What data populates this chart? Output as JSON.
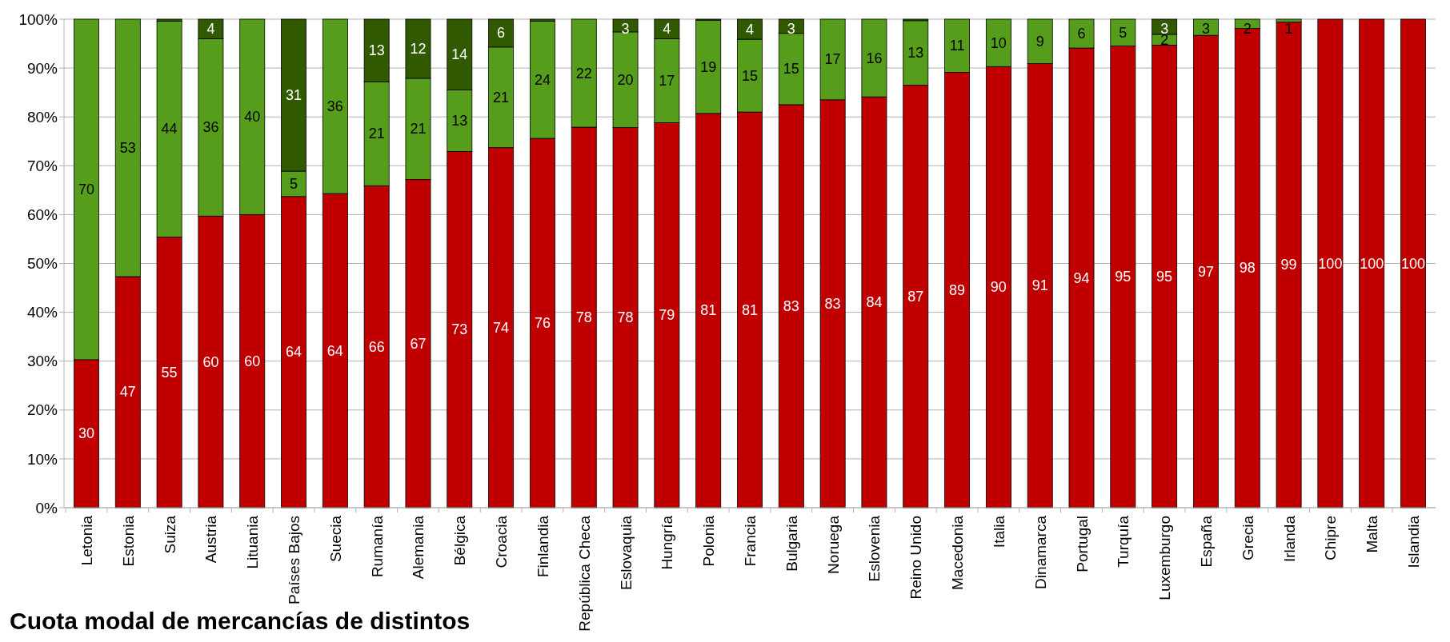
{
  "chart_data": {
    "type": "bar",
    "stacked": true,
    "title": "Cuota modal de mercancías de distintos",
    "categories": [
      "Letonia",
      "Estonia",
      "Suiza",
      "Austria",
      "Lituania",
      "Países Bajos",
      "Suecia",
      "Rumanía",
      "Alemania",
      "Bélgica",
      "Croacia",
      "Finlandia",
      "República Checa",
      "Eslovaquia",
      "Hungría",
      "Polonia",
      "Francia",
      "Bulgaria",
      "Noruega",
      "Eslovenia",
      "Reino Unido",
      "Macedonia",
      "Italia",
      "Dinamarca",
      "Portugal",
      "Turquía",
      "Luxemburgo",
      "España",
      "Grecia",
      "Irlanda",
      "Chipre",
      "Malta",
      "Islandia"
    ],
    "series": [
      {
        "color": "#c00000",
        "values": [
          30.3,
          47.3,
          55.4,
          59.7,
          60,
          63.7,
          64.3,
          65.9,
          67.2,
          72.9,
          73.7,
          75.6,
          77.9,
          77.8,
          78.8,
          80.7,
          81,
          82.5,
          83.5,
          84.1,
          86.5,
          89.1,
          90.3,
          90.9,
          94.1,
          94.5,
          94.7,
          96.7,
          98.1,
          99.4,
          100,
          100,
          100
        ],
        "value_labels": [
          "30",
          "47",
          "55",
          "60",
          "60",
          "64",
          "64",
          "66",
          "67",
          "73",
          "74",
          "76",
          "78",
          "78",
          "79",
          "81",
          "81",
          "83",
          "83",
          "84",
          "87",
          "89",
          "90",
          "91",
          "94",
          "95",
          "95",
          "97",
          "98",
          "99",
          "100",
          "100",
          "100"
        ]
      },
      {
        "color": "#579d1c",
        "values": [
          69.7,
          52.7,
          44.2,
          36.3,
          40,
          5.2,
          35.7,
          21.3,
          20.7,
          12.6,
          20.6,
          24,
          22.1,
          19.6,
          17.2,
          19.1,
          14.9,
          14.6,
          16.5,
          15.9,
          13.2,
          10.9,
          9.7,
          9.1,
          5.9,
          5.5,
          2.2,
          3.3,
          1.9,
          0.6,
          0,
          0,
          0
        ],
        "value_labels": [
          "70",
          "53",
          "44",
          "36",
          "40",
          "5",
          "36",
          "21",
          "21",
          "13",
          "21",
          "24",
          "22",
          "20",
          "17",
          "19",
          "15",
          "15",
          "17",
          "16",
          "13",
          "11",
          "10",
          "9",
          "6",
          "5",
          "2",
          "3",
          "2",
          "1",
          null,
          null,
          null
        ]
      },
      {
        "color": "#315a00",
        "values": [
          0,
          0,
          0.4,
          4,
          0,
          31.1,
          0,
          12.8,
          12.1,
          14.5,
          5.7,
          0.4,
          0,
          2.6,
          4,
          0.2,
          4.1,
          2.9,
          0,
          0,
          0.3,
          0,
          0,
          0,
          0,
          0,
          3.1,
          0,
          0,
          0,
          0,
          0,
          0
        ],
        "value_labels": [
          null,
          null,
          null,
          "4",
          null,
          "31",
          null,
          "13",
          "12",
          "14",
          "6",
          null,
          null,
          "3",
          "4",
          null,
          "4",
          "3",
          null,
          null,
          null,
          null,
          null,
          null,
          null,
          null,
          "3",
          null,
          null,
          null,
          null,
          null,
          null
        ]
      }
    ],
    "ylim": [
      0,
      100
    ],
    "yticks": [
      {
        "value": 0,
        "label": "0%"
      },
      {
        "value": 10,
        "label": "10%"
      },
      {
        "value": 20,
        "label": "20%"
      },
      {
        "value": 30,
        "label": "30%"
      },
      {
        "value": 40,
        "label": "40%"
      },
      {
        "value": 50,
        "label": "50%"
      },
      {
        "value": 60,
        "label": "60%"
      },
      {
        "value": 70,
        "label": "70%"
      },
      {
        "value": 80,
        "label": "80%"
      },
      {
        "value": 90,
        "label": "90%"
      },
      {
        "value": 100,
        "label": "100%"
      }
    ],
    "grid": "y"
  }
}
